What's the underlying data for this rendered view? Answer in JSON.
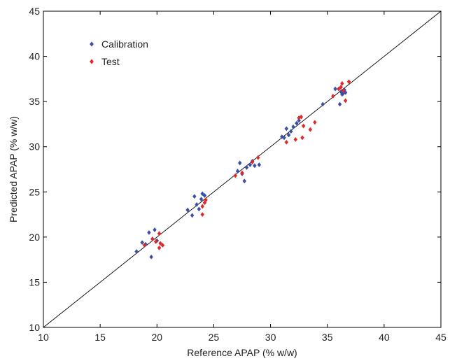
{
  "chart_data": {
    "type": "scatter",
    "xlabel": "Reference APAP (% w/w)",
    "ylabel": "Predicted APAP (% w/w)",
    "xlim": [
      10,
      45
    ],
    "ylim": [
      10,
      45
    ],
    "xticks": [
      10,
      15,
      20,
      25,
      30,
      35,
      40,
      45
    ],
    "yticks": [
      10,
      15,
      20,
      25,
      30,
      35,
      40,
      45
    ],
    "grid": false,
    "legend_position": "top-left",
    "reference_line": {
      "from": [
        10,
        10
      ],
      "to": [
        45,
        45
      ]
    },
    "series": [
      {
        "name": "Calibration",
        "color": "#3b4fa6",
        "marker": "diamond",
        "points": [
          [
            18.2,
            18.4
          ],
          [
            18.7,
            19.4
          ],
          [
            19.0,
            19.2
          ],
          [
            19.3,
            20.5
          ],
          [
            19.5,
            17.8
          ],
          [
            19.8,
            20.8
          ],
          [
            20.0,
            19.6
          ],
          [
            22.7,
            23.0
          ],
          [
            23.1,
            22.4
          ],
          [
            23.3,
            24.5
          ],
          [
            23.5,
            23.6
          ],
          [
            23.7,
            23.1
          ],
          [
            23.9,
            24.2
          ],
          [
            24.0,
            24.8
          ],
          [
            24.2,
            24.6
          ],
          [
            27.1,
            27.3
          ],
          [
            27.3,
            28.2
          ],
          [
            27.5,
            27.0
          ],
          [
            27.7,
            26.2
          ],
          [
            27.9,
            27.7
          ],
          [
            28.2,
            28.0
          ],
          [
            28.4,
            28.4
          ],
          [
            28.6,
            27.9
          ],
          [
            29.0,
            28.0
          ],
          [
            31.0,
            31.1
          ],
          [
            31.2,
            31.0
          ],
          [
            31.4,
            32.0
          ],
          [
            31.6,
            31.3
          ],
          [
            31.8,
            31.7
          ],
          [
            32.0,
            32.2
          ],
          [
            32.3,
            32.6
          ],
          [
            32.5,
            32.9
          ],
          [
            34.6,
            34.7
          ],
          [
            35.7,
            36.4
          ],
          [
            36.1,
            34.7
          ],
          [
            36.2,
            36.1
          ],
          [
            36.3,
            35.8
          ],
          [
            36.5,
            36.3
          ],
          [
            36.6,
            36.0
          ],
          [
            36.4,
            35.9
          ]
        ]
      },
      {
        "name": "Test",
        "color": "#e02a2a",
        "marker": "diamond",
        "points": [
          [
            18.9,
            19.1
          ],
          [
            19.6,
            19.8
          ],
          [
            19.9,
            19.5
          ],
          [
            20.2,
            20.4
          ],
          [
            20.3,
            19.3
          ],
          [
            20.5,
            19.1
          ],
          [
            20.2,
            18.8
          ],
          [
            24.0,
            23.4
          ],
          [
            24.0,
            22.5
          ],
          [
            24.2,
            23.8
          ],
          [
            24.3,
            24.1
          ],
          [
            26.9,
            26.8
          ],
          [
            27.5,
            27.1
          ],
          [
            28.4,
            28.3
          ],
          [
            28.9,
            28.8
          ],
          [
            31.4,
            30.5
          ],
          [
            32.2,
            30.8
          ],
          [
            32.5,
            33.2
          ],
          [
            32.7,
            33.3
          ],
          [
            32.8,
            31.0
          ],
          [
            32.9,
            32.3
          ],
          [
            33.5,
            31.9
          ],
          [
            33.9,
            32.7
          ],
          [
            35.5,
            35.6
          ],
          [
            36.2,
            36.6
          ],
          [
            36.3,
            37.0
          ],
          [
            36.6,
            35.1
          ],
          [
            36.9,
            37.2
          ],
          [
            36.0,
            36.4
          ],
          [
            36.4,
            36.2
          ]
        ]
      }
    ]
  }
}
